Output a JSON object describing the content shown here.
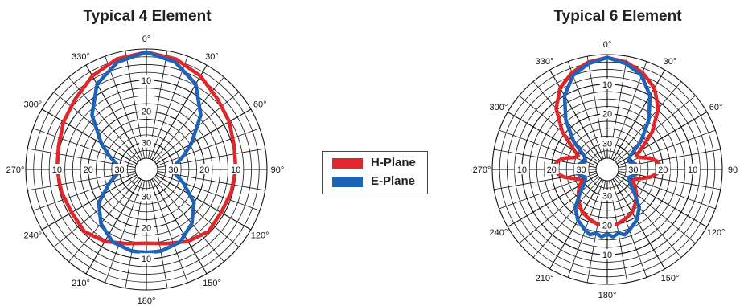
{
  "colors": {
    "h_plane": "#e0282c",
    "e_plane": "#1f63b8",
    "grid": "#111111"
  },
  "legend": {
    "items": [
      {
        "label": "H-Plane",
        "color": "#e0282c"
      },
      {
        "label": "E-Plane",
        "color": "#1f63b8"
      }
    ]
  },
  "chart_data": [
    {
      "type": "polar",
      "title": "Typical 4 Element",
      "angle_labels": [
        "0°",
        "30°",
        "60°",
        "90°",
        "120°",
        "150°",
        "180°",
        "210°",
        "240°",
        "270°",
        "300°",
        "330°"
      ],
      "radial_labels": [
        "10",
        "20",
        "30"
      ],
      "radial_unit_note": "",
      "rlim_db": [
        -35,
        0
      ],
      "grid": true,
      "series": [
        {
          "name": "H-Plane",
          "angles_deg": [
            0,
            15,
            30,
            45,
            60,
            75,
            90,
            105,
            120,
            135,
            150,
            165,
            180,
            195,
            210,
            225,
            240,
            255,
            270,
            285,
            300,
            315,
            330,
            345
          ],
          "gain_db": [
            -1,
            -2,
            -4,
            -6.5,
            -8,
            -9.5,
            -10,
            -10.5,
            -11,
            -10.5,
            -12,
            -14,
            -15,
            -14,
            -12,
            -10.5,
            -11,
            -10.5,
            -10,
            -9.5,
            -8,
            -6.5,
            -4,
            -2
          ]
        },
        {
          "name": "E-Plane",
          "angles_deg": [
            0,
            15,
            30,
            45,
            60,
            70,
            80,
            90,
            100,
            110,
            125,
            140,
            155,
            170,
            180,
            190,
            205,
            220,
            235,
            250,
            260,
            270,
            280,
            290,
            300,
            315,
            330,
            345
          ],
          "gain_db": [
            -1,
            -3,
            -7,
            -14,
            -22,
            -26,
            -29,
            -30,
            -29,
            -26,
            -20,
            -16,
            -13,
            -12,
            -12,
            -12,
            -13,
            -16,
            -20,
            -26,
            -29,
            -30,
            -29,
            -26,
            -22,
            -14,
            -7,
            -3
          ]
        }
      ]
    },
    {
      "type": "polar",
      "title": "Typical 6 Element",
      "angle_labels": [
        "0°",
        "30°",
        "60°",
        "90",
        "120°",
        "150°",
        "180°",
        "210°",
        "240°",
        "270°",
        "300°",
        "330°"
      ],
      "radial_labels": [
        "10",
        "20",
        "30"
      ],
      "rlim_db": [
        -35,
        0
      ],
      "grid": true,
      "series": [
        {
          "name": "H-Plane",
          "angles_deg": [
            0,
            10,
            20,
            30,
            40,
            50,
            60,
            65,
            70,
            75,
            80,
            85,
            90,
            95,
            100,
            105,
            110,
            115,
            120,
            130,
            140,
            150,
            160,
            170,
            180,
            190,
            200,
            210,
            220,
            230,
            240,
            245,
            250,
            255,
            260,
            265,
            270,
            275,
            280,
            285,
            290,
            295,
            300,
            310,
            320,
            330,
            340,
            350
          ],
          "gain_db": [
            -1,
            -2,
            -4,
            -7,
            -12,
            -19,
            -26,
            -28,
            -27,
            -24,
            -22,
            -21,
            -21,
            -22,
            -24,
            -27,
            -29,
            -29.5,
            -28,
            -26,
            -24,
            -22,
            -21,
            -20,
            -20,
            -20,
            -21,
            -22,
            -24,
            -26,
            -28,
            -29.5,
            -29,
            -27,
            -24,
            -22,
            -21,
            -21,
            -22,
            -24,
            -27,
            -28,
            -26,
            -19,
            -12,
            -7,
            -4,
            -2
          ]
        },
        {
          "name": "E-Plane",
          "angles_deg": [
            0,
            10,
            20,
            30,
            40,
            50,
            60,
            70,
            75,
            80,
            85,
            90,
            95,
            100,
            105,
            110,
            120,
            130,
            140,
            150,
            160,
            165,
            170,
            175,
            180,
            185,
            190,
            195,
            200,
            210,
            220,
            230,
            240,
            250,
            255,
            260,
            265,
            270,
            275,
            280,
            285,
            290,
            300,
            310,
            320,
            330,
            340,
            350
          ],
          "gain_db": [
            -1,
            -2.5,
            -5,
            -10,
            -17,
            -24,
            -30,
            -31,
            -30,
            -29,
            -29,
            -29,
            -29,
            -29,
            -30,
            -31,
            -30,
            -27,
            -22,
            -19,
            -17,
            -16,
            -17,
            -16,
            -17,
            -16,
            -17,
            -16,
            -17,
            -19,
            -22,
            -27,
            -30,
            -31,
            -30,
            -29,
            -29,
            -29,
            -29,
            -29,
            -30,
            -31,
            -30,
            -24,
            -17,
            -10,
            -5,
            -2.5
          ]
        }
      ]
    }
  ]
}
